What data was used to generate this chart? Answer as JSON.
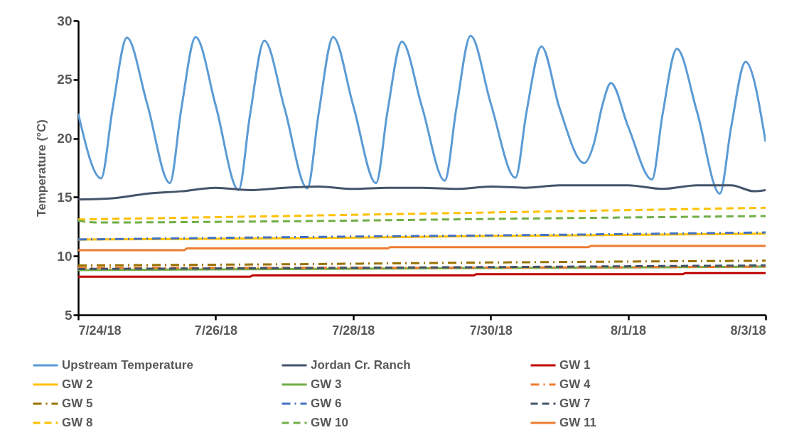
{
  "chart_data": {
    "type": "line",
    "ylabel": "Temperature (°C)",
    "ylim": [
      5,
      30
    ],
    "yticks": [
      5,
      10,
      15,
      20,
      25,
      30
    ],
    "xlim": [
      "--07-24",
      "--08-03"
    ],
    "xticks": [
      {
        "value": "--07-24",
        "label": "7/24/18"
      },
      {
        "value": "--07-26",
        "label": "7/26/18"
      },
      {
        "value": "--07-28",
        "label": "7/28/18"
      },
      {
        "value": "--07-30",
        "label": "7/30/18"
      },
      {
        "value": "--08-01",
        "label": "8/1/18"
      },
      {
        "value": "--08-03",
        "label": "8/3/18"
      }
    ],
    "grid": false,
    "legend": "bottom",
    "marker": "none",
    "series": [
      {
        "name": "Upstream Temperature",
        "color": "#5b9bd5",
        "line_style": "solid",
        "x": [
          "--07-24T00:00",
          "--07-24T08:00",
          "--07-24T12:00",
          "--07-24T17:00",
          "--07-25T00:00",
          "--07-25T08:00",
          "--07-25T12:00",
          "--07-25T17:00",
          "--07-26T00:00",
          "--07-26T08:00",
          "--07-26T12:00",
          "--07-26T17:00",
          "--07-27T00:00",
          "--07-27T08:00",
          "--07-27T12:00",
          "--07-27T17:00",
          "--07-28T00:00",
          "--07-28T08:00",
          "--07-28T12:00",
          "--07-28T17:00",
          "--07-29T00:00",
          "--07-29T08:00",
          "--07-29T12:00",
          "--07-29T17:00",
          "--07-30T00:00",
          "--07-30T08:40",
          "--07-30T12:30",
          "--07-30T17:45",
          "--07-31T00:00",
          "--07-31T08:40",
          "--07-31T12:00",
          "--07-31T15:00",
          "--07-31T18:00",
          "--08-01T00:00",
          "--08-01T08:20",
          "--08-01T12:00",
          "--08-01T17:00",
          "--08-02T00:00",
          "--08-02T08:00",
          "--08-02T12:00",
          "--08-02T17:00",
          "--08-03T00:00"
        ],
        "values": [
          22.1,
          16.6,
          22.5,
          28.55,
          23.0,
          16.2,
          22.5,
          28.6,
          22.8,
          15.6,
          22.0,
          28.3,
          22.6,
          15.75,
          22.2,
          28.6,
          22.8,
          16.2,
          22.3,
          28.2,
          22.7,
          16.4,
          22.5,
          28.7,
          23.0,
          16.65,
          22.2,
          27.8,
          22.6,
          17.9,
          19.5,
          22.8,
          24.7,
          21.0,
          16.5,
          22.0,
          27.6,
          22.3,
          15.3,
          21.0,
          26.5,
          19.7
        ]
      },
      {
        "name": "Jordan Cr. Ranch",
        "color": "#44546a",
        "line_style": "solid",
        "x": [
          "--07-24T00:00",
          "--07-24T12:00",
          "--07-25T00:00",
          "--07-25T12:00",
          "--07-26T00:00",
          "--07-26T12:00",
          "--07-27T00:00",
          "--07-27T12:00",
          "--07-28T00:00",
          "--07-28T12:00",
          "--07-29T00:00",
          "--07-29T12:00",
          "--07-30T00:00",
          "--07-30T12:00",
          "--07-31T00:00",
          "--07-31T12:00",
          "--08-01T00:00",
          "--08-01T12:00",
          "--08-02T00:00",
          "--08-02T12:00",
          "--08-02T20:00",
          "--08-03T00:00"
        ],
        "values": [
          14.8,
          14.9,
          15.3,
          15.5,
          15.8,
          15.6,
          15.8,
          15.9,
          15.7,
          15.8,
          15.8,
          15.7,
          15.9,
          15.8,
          16.0,
          16.0,
          16.0,
          15.7,
          16.0,
          16.0,
          15.5,
          15.6
        ]
      },
      {
        "name": "GW 1",
        "color": "#c00000",
        "line_style": "solid",
        "x": [
          "--07-24T00:00",
          "--07-26T12:00",
          "--07-26T13:00",
          "--07-29T18:00",
          "--07-29T19:00",
          "--08-01T19:00",
          "--08-01T20:00",
          "--08-03T00:00"
        ],
        "values": [
          8.25,
          8.25,
          8.35,
          8.35,
          8.45,
          8.45,
          8.55,
          8.55
        ]
      },
      {
        "name": "GW 2",
        "color": "#ffc000",
        "line_style": "solid",
        "x": [
          "--07-24T00:00",
          "--07-27T00:00",
          "--07-30T00:00",
          "--08-03T00:00"
        ],
        "values": [
          11.4,
          11.5,
          11.7,
          11.9
        ]
      },
      {
        "name": "GW 3",
        "color": "#70ad47",
        "line_style": "solid",
        "x": [
          "--07-24T00:00",
          "--07-27T00:00",
          "--07-31T00:00",
          "--08-03T00:00"
        ],
        "values": [
          8.8,
          8.9,
          9.0,
          9.1
        ]
      },
      {
        "name": "GW 4",
        "color": "#ed7d31",
        "line_style": "dashdot",
        "x": [
          "--07-24T00:00",
          "--07-28T00:00",
          "--08-03T00:00"
        ],
        "values": [
          9.0,
          9.0,
          9.1
        ]
      },
      {
        "name": "GW 5",
        "color": "#997300",
        "line_style": "dashdot",
        "x": [
          "--07-24T00:00",
          "--07-27T00:00",
          "--07-30T00:00",
          "--08-03T00:00"
        ],
        "values": [
          9.2,
          9.3,
          9.45,
          9.6
        ]
      },
      {
        "name": "GW 6",
        "color": "#4472c4",
        "line_style": "dashdot",
        "x": [
          "--07-24T00:00",
          "--07-27T00:00",
          "--07-30T00:00",
          "--08-03T00:00"
        ],
        "values": [
          11.4,
          11.6,
          11.75,
          12.0
        ]
      },
      {
        "name": "GW 7",
        "color": "#44546a",
        "line_style": "dashed",
        "x": [
          "--07-24T00:00",
          "--07-28T00:00",
          "--08-03T00:00"
        ],
        "values": [
          8.9,
          9.0,
          9.2
        ]
      },
      {
        "name": "GW 8",
        "color": "#ffc000",
        "line_style": "dashed",
        "x": [
          "--07-24T00:00",
          "--07-27T00:00",
          "--07-30T00:00",
          "--08-03T00:00"
        ],
        "values": [
          13.1,
          13.4,
          13.7,
          14.1
        ]
      },
      {
        "name": "GW 10",
        "color": "#70ad47",
        "line_style": "dashed",
        "x": [
          "--07-24T00:00",
          "--07-24T06:00",
          "--07-27T00:00",
          "--07-30T00:00",
          "--08-03T00:00"
        ],
        "values": [
          13.0,
          12.85,
          12.95,
          13.15,
          13.4
        ]
      },
      {
        "name": "GW 11",
        "color": "#ed7d31",
        "line_style": "solid",
        "x": [
          "--07-24T00:00",
          "--07-25T13:00",
          "--07-25T14:00",
          "--07-28T12:00",
          "--07-28T13:00",
          "--07-31T10:00",
          "--07-31T11:00",
          "--08-03T00:00"
        ],
        "values": [
          10.5,
          10.5,
          10.65,
          10.65,
          10.75,
          10.75,
          10.85,
          10.85
        ]
      }
    ]
  }
}
